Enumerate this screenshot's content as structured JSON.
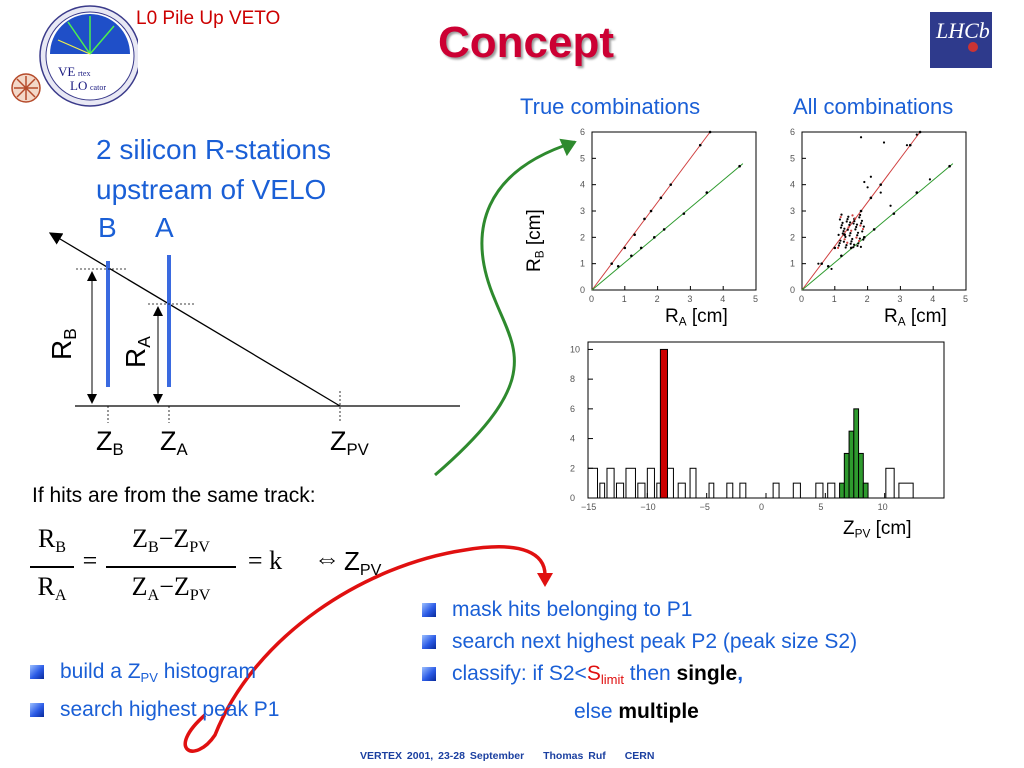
{
  "header": {
    "topic": "L0 Pile Up VETO",
    "title": "Concept",
    "vertex_logo": {
      "line1_big": "VE",
      "line1_small": "rtex",
      "line2_big": "LO",
      "line2_small": "cator"
    },
    "lhcb_logo_text": "LHCb"
  },
  "left": {
    "intro_line1": "2 silicon R-stations",
    "intro_line2": "upstream of VELO",
    "station_b": "B",
    "station_a": "A",
    "rb_label": "R",
    "rb_sub": "B",
    "ra_label": "R",
    "ra_sub": "A",
    "zb_label": "Z",
    "zb_sub": "B",
    "za_label": "Z",
    "za_sub": "A",
    "zpv_label": "Z",
    "zpv_sub": "PV",
    "same_track": "If hits are from the same track:",
    "formula": {
      "lhs_num": "R",
      "lhs_num_sub": "B",
      "lhs_den": "R",
      "lhs_den_sub": "A",
      "eq": "=",
      "rhs_num": "Z",
      "rhs_num_sub1": "B",
      "rhs_num_minus": "−Z",
      "rhs_num_sub2": "PV",
      "rhs_den": "Z",
      "rhs_den_sub1": "A",
      "rhs_den_minus": "−Z",
      "rhs_den_sub2": "PV",
      "k": "= k",
      "implies": "⇔",
      "result": "Z",
      "result_sub": "PV"
    }
  },
  "plots": {
    "true_caption": "True combinations",
    "all_caption": "All combinations",
    "rb_axis": "R",
    "rb_axis_sub": "B",
    "rb_axis_unit": " [cm]",
    "ra_axis": "R",
    "ra_axis_sub": "A",
    "ra_axis_unit": " [cm]",
    "zpv_axis": "Z",
    "zpv_axis_sub": "PV",
    "zpv_axis_unit": " [cm]",
    "scatter_yticks": [
      "0",
      "1",
      "2",
      "3",
      "4",
      "5",
      "6"
    ],
    "scatter_xticks": [
      "0",
      "1",
      "2",
      "3",
      "4",
      "5"
    ],
    "hist_yticks": [
      "0",
      "2",
      "4",
      "6",
      "8",
      "10"
    ],
    "hist_xticks": [
      "−15",
      "−10",
      "−5",
      "0",
      "5",
      "10"
    ],
    "colors": {
      "red_line": "#d04040",
      "green_line": "#2e9a2e",
      "peak_red": "#cc0000",
      "peak_green": "#2e9a2e"
    }
  },
  "bullets_left": [
    {
      "pre": "build a Z",
      "sub": "PV",
      "post": " histogram"
    },
    {
      "text": "search highest peak P1"
    }
  ],
  "bullets_right": [
    {
      "text": "mask hits belonging to P1"
    },
    {
      "text": "search next highest peak P2 (peak size S2)"
    },
    {
      "pre": "classify: if  S2<",
      "s": "S",
      "s_sub": "limit",
      "mid": " then ",
      "bold1": "single",
      "comma": ","
    },
    {
      "else": "else ",
      "bold2": "multiple"
    }
  ],
  "footer": {
    "event": "VERTEX 2001, 23-28 September",
    "author": "Thomas Ruf",
    "institute": "CERN"
  }
}
